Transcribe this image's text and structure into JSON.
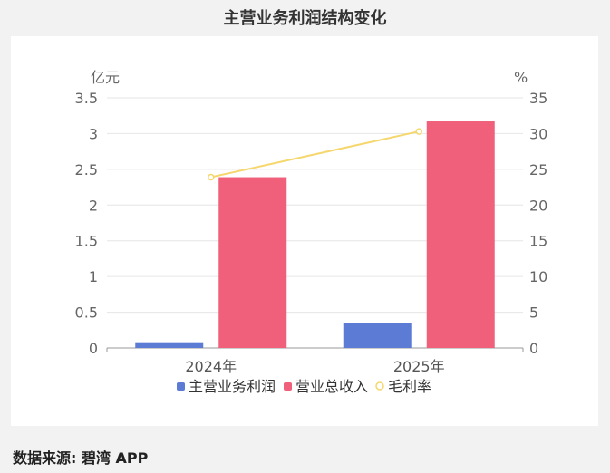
{
  "header": {
    "title": "主营业务利润结构变化"
  },
  "footer": {
    "source": "数据来源: 碧湾 APP"
  },
  "chart_data": {
    "type": "bar",
    "title": "主营业务利润结构变化",
    "categories": [
      "2024年",
      "2025年"
    ],
    "y_left_label": "亿元",
    "y_right_label": "%",
    "y_left_lim": [
      0,
      3.5
    ],
    "y_right_lim": [
      0,
      35
    ],
    "y_left_ticks": [
      "0",
      "0.5",
      "1",
      "1.5",
      "2",
      "2.5",
      "3",
      "3.5"
    ],
    "y_right_ticks": [
      "0",
      "5",
      "10",
      "15",
      "20",
      "25",
      "30",
      "35"
    ],
    "grid": true,
    "legend_position": "bottom",
    "series": [
      {
        "name": "主营业务利润",
        "type": "bar",
        "axis": "left",
        "color": "#5b7bd5",
        "values": [
          0.08,
          0.35
        ]
      },
      {
        "name": "营业总收入",
        "type": "bar",
        "axis": "left",
        "color": "#f0607a",
        "values": [
          2.39,
          3.17
        ]
      },
      {
        "name": "毛利率",
        "type": "line",
        "axis": "right",
        "color": "#f5d76e",
        "values": [
          23.9,
          30.3
        ]
      }
    ]
  }
}
